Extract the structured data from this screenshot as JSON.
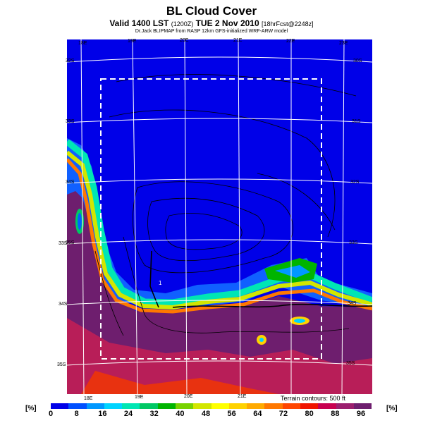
{
  "header": {
    "title": "BL Cloud Cover",
    "subtitle_main": "Valid 1400 LST",
    "subtitle_zone": "(1200Z)",
    "subtitle_date": "TUE 2 Nov 2010",
    "subtitle_fcst": "[18hrFcst@2248z]",
    "credit": "Dr.Jack BLIPMAP from RASP 12km GFS-initialized WRF-ARW model"
  },
  "map": {
    "top_lon_labels": [
      "18E",
      "19E",
      "20E",
      "21E",
      "22E",
      "23E"
    ],
    "bottom_lon_labels": [
      "18E",
      "19E",
      "20E",
      "21E"
    ],
    "left_lat_labels": [
      "32S",
      "33S",
      "34S",
      "35S",
      "33S",
      "34S",
      "35S"
    ],
    "right_lat_labels": [
      "30S",
      "31S",
      "32S",
      "33S",
      "34S",
      "35S"
    ],
    "terrain_note": "Terrain contours: 500 ft",
    "spot_marker": "1"
  },
  "colorbar": {
    "unit": "[%]",
    "ticks": [
      "0",
      "8",
      "16",
      "24",
      "32",
      "40",
      "48",
      "56",
      "64",
      "72",
      "80",
      "88",
      "96"
    ],
    "colors": [
      "#0000e8",
      "#0050ff",
      "#0098ff",
      "#00d4ff",
      "#00e6b4",
      "#00c864",
      "#00b400",
      "#78d200",
      "#d2e600",
      "#ffff00",
      "#ffd200",
      "#ffaa00",
      "#ff7800",
      "#ff4600",
      "#f01400",
      "#c80050",
      "#9b1e6e",
      "#6e1e6e"
    ]
  }
}
